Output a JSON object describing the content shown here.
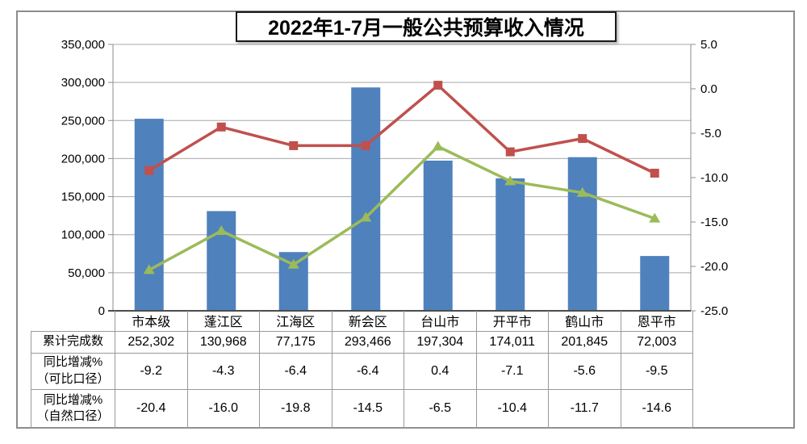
{
  "title": "2022年1-7月一般公共预算收入情况",
  "colors": {
    "bar": "#4F81BD",
    "line_comparable": "#C0504D",
    "line_natural": "#9BBB59",
    "gridline": "#A8A8A8",
    "axis_line": "#8C8C8C",
    "x_axis_line": "#4D4D4D",
    "table_border": "#999999",
    "frame_border": "#8C8C8C"
  },
  "chart_data": {
    "type": "combo-bar-line",
    "title": "2022年1-7月一般公共预算收入情况",
    "categories": [
      "市本级",
      "蓬江区",
      "江海区",
      "新会区",
      "台山市",
      "开平市",
      "鹤山市",
      "恩平市"
    ],
    "series": [
      {
        "key": "bar",
        "name": "累计完成数",
        "type": "bar",
        "axis": "left",
        "color": "#4F81BD",
        "values": [
          252302,
          130968,
          77175,
          293466,
          197304,
          174011,
          201845,
          72003
        ],
        "labels": [
          "252,302",
          "130,968",
          "77,175",
          "293,466",
          "197,304",
          "174,011",
          "201,845",
          "72,003"
        ]
      },
      {
        "key": "line_comparable",
        "name": "同比增减%（可比口径）",
        "type": "line",
        "marker": "square",
        "axis": "right",
        "color": "#C0504D",
        "values": [
          -9.2,
          -4.3,
          -6.4,
          -6.4,
          0.4,
          -7.1,
          -5.6,
          -9.5
        ],
        "labels": [
          "-9.2",
          "-4.3",
          "-6.4",
          "-6.4",
          "0.4",
          "-7.1",
          "-5.6",
          "-9.5"
        ]
      },
      {
        "key": "line_natural",
        "name": "同比增减%（自然口径）",
        "type": "line",
        "marker": "triangle",
        "axis": "right",
        "color": "#9BBB59",
        "values": [
          -20.4,
          -16.0,
          -19.8,
          -14.5,
          -6.5,
          -10.4,
          -11.7,
          -14.6
        ],
        "labels": [
          "-20.4",
          "-16.0",
          "-19.8",
          "-14.5",
          "-6.5",
          "-10.4",
          "-11.7",
          "-14.6"
        ]
      }
    ],
    "left_axis": {
      "min": 0,
      "max": 350000,
      "step": 50000,
      "tick_labels": [
        "0",
        "50,000",
        "100,000",
        "150,000",
        "200,000",
        "250,000",
        "300,000",
        "350,000"
      ]
    },
    "right_axis": {
      "min": -25,
      "max": 5,
      "step": 5,
      "tick_labels": [
        "-25.0",
        "-20.0",
        "-15.0",
        "-10.0",
        "-5.0",
        "0.0",
        "5.0"
      ]
    },
    "grid": true,
    "legend": "none"
  },
  "table": {
    "rows": [
      {
        "label_lines": [
          "累计完成数"
        ],
        "series_key": "bar"
      },
      {
        "label_lines": [
          "同比增减%",
          "（可比口径）"
        ],
        "series_key": "line_comparable"
      },
      {
        "label_lines": [
          "同比增减%",
          "（自然口径）"
        ],
        "series_key": "line_natural"
      }
    ]
  }
}
